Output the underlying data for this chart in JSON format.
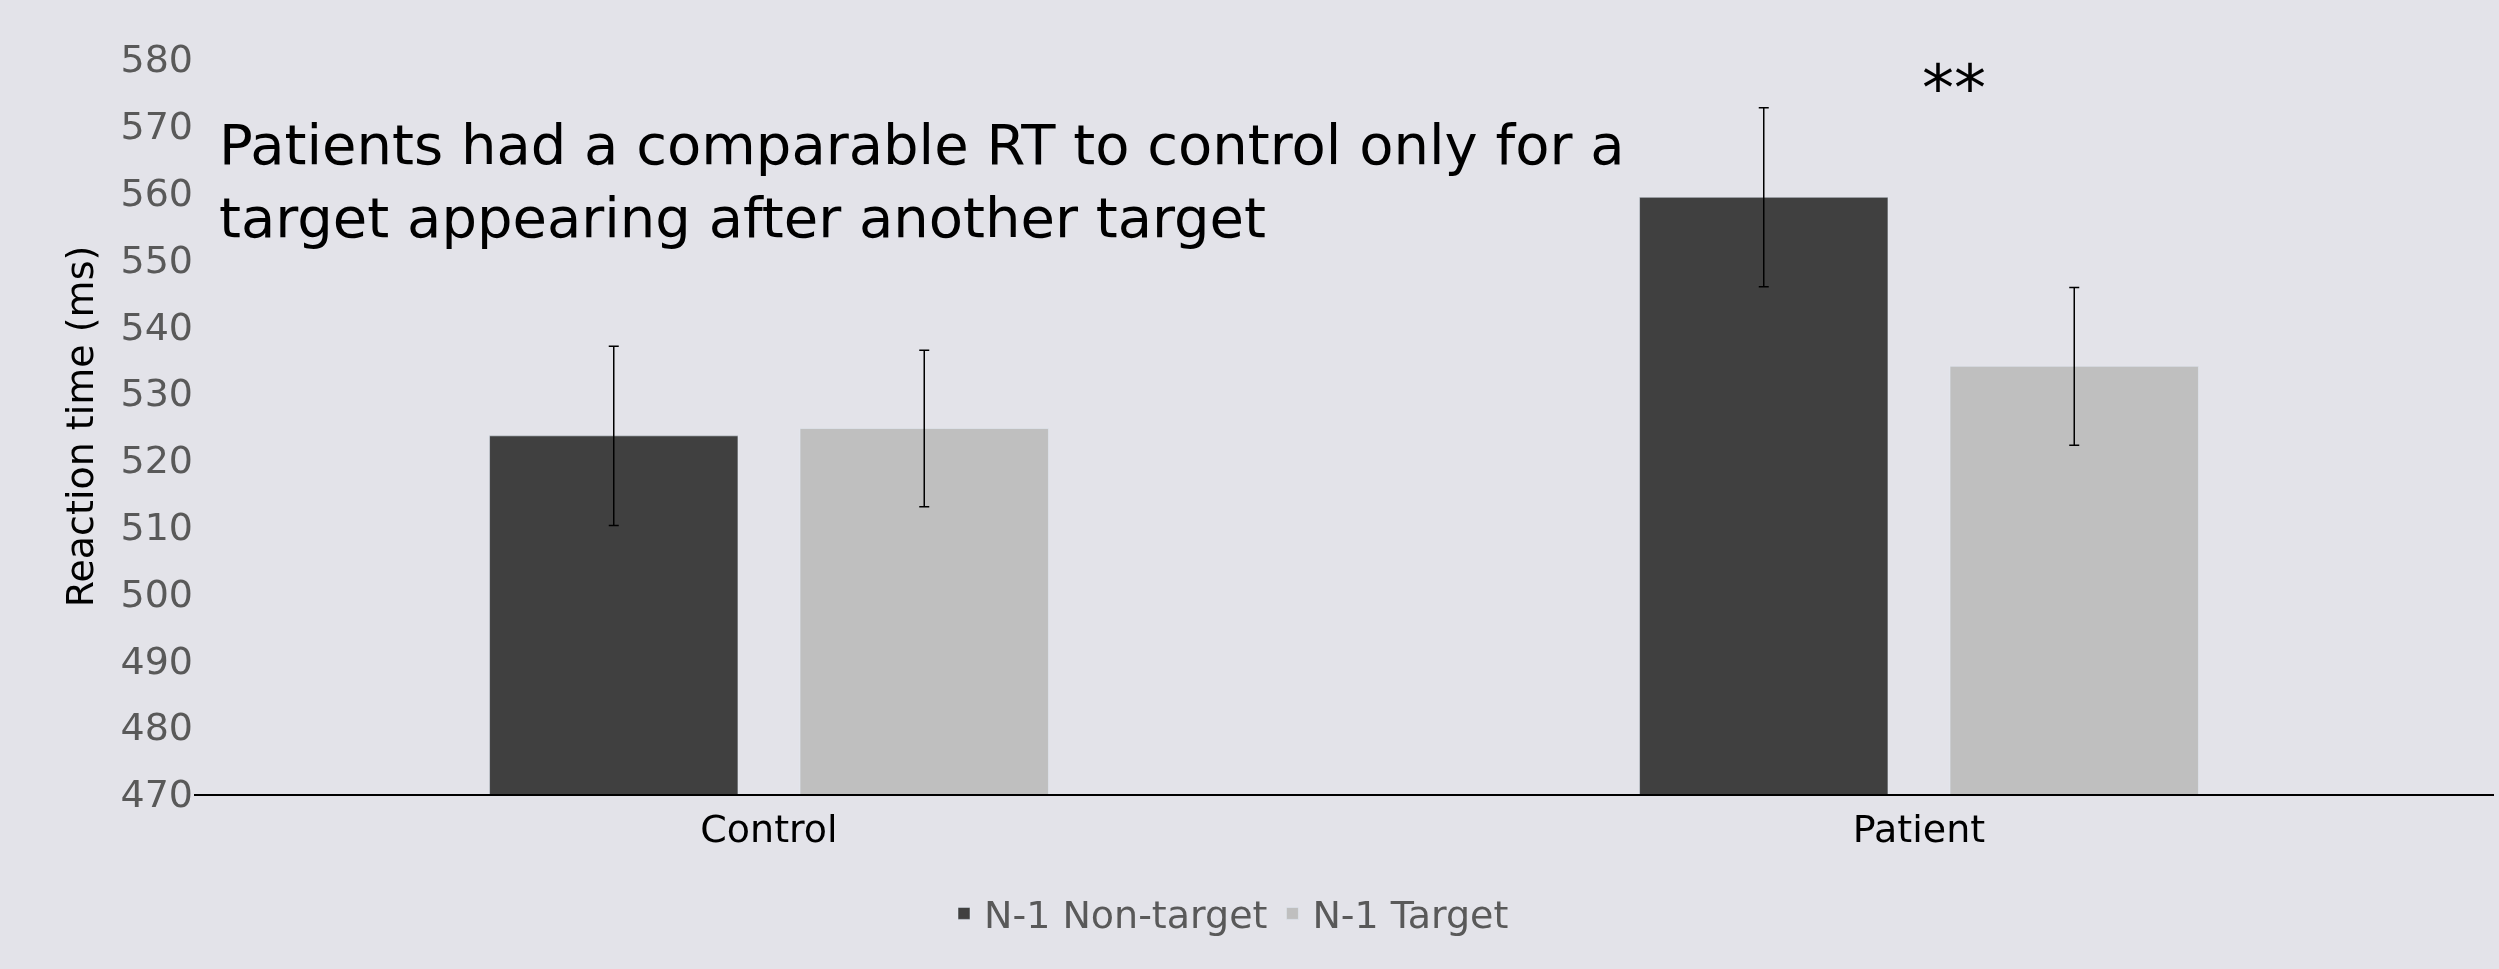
{
  "chart_data": {
    "type": "bar",
    "ylabel": "Reaction time (ms)",
    "categories": [
      "Control",
      "Patient"
    ],
    "series": [
      {
        "name": "N-1 Non-target",
        "color": "#404040",
        "values": [
          523.6,
          559.3
        ],
        "errors": [
          13.4,
          13.4
        ]
      },
      {
        "name": "N-1 Target",
        "color": "#bfbfbf",
        "values": [
          524.7,
          534.0
        ],
        "errors": [
          11.7,
          11.8
        ]
      }
    ],
    "ylim": [
      470,
      580
    ],
    "yticks": [
      470,
      480,
      490,
      500,
      510,
      520,
      530,
      540,
      550,
      560,
      570,
      580
    ],
    "grid": false,
    "legend": "bottom",
    "annotations": [
      "Patients had a comparable RT to control only for a\ntarget appearing after another target",
      "**"
    ]
  }
}
